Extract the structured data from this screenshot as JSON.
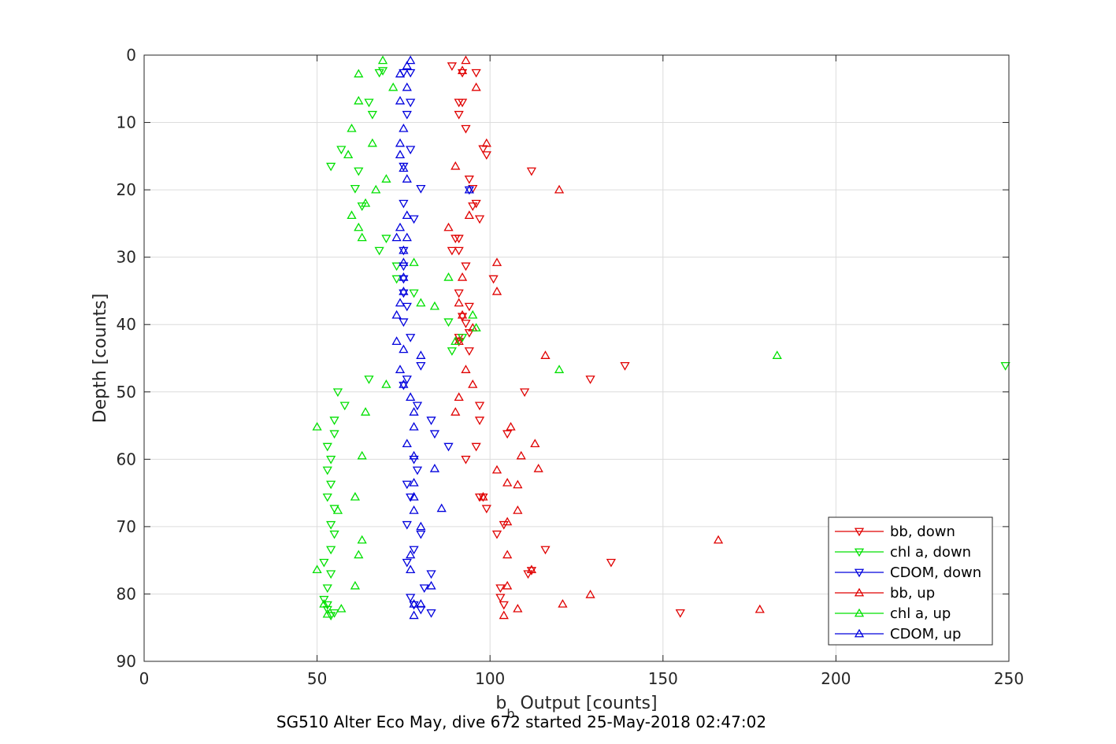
{
  "chart_data": {
    "type": "scatter",
    "title": "",
    "caption": "SG510 Alter Eco May, dive 672 started 25-May-2018 02:47:02",
    "xlabel_main": "b",
    "xlabel_sub": "b",
    "xlabel_rest": " Output [counts]",
    "ylabel": "Depth [counts]",
    "xlim": [
      0,
      250
    ],
    "ylim": [
      0,
      90
    ],
    "y_reversed": true,
    "grid": true,
    "legend_placement": "bottom-right",
    "xticks": [
      0,
      50,
      100,
      150,
      200,
      250
    ],
    "yticks": [
      0,
      10,
      20,
      30,
      40,
      50,
      60,
      70,
      80,
      90
    ],
    "colors": {
      "red": "#e00000",
      "green": "#00e000",
      "blue": "#0000dd",
      "grid": "#dcdcdc",
      "axis": "#262626"
    },
    "series": [
      {
        "name": "bb, down",
        "color": "#e00000",
        "marker": "triangle-down",
        "points": [
          [
            89,
            1.6
          ],
          [
            92,
            2.6
          ],
          [
            96,
            2.6
          ],
          [
            91,
            7.0
          ],
          [
            92,
            7.0
          ],
          [
            91,
            8.8
          ],
          [
            93,
            10.9
          ],
          [
            98,
            13.9
          ],
          [
            99,
            14.8
          ],
          [
            112,
            17.2
          ],
          [
            94,
            18.4
          ],
          [
            95,
            19.8
          ],
          [
            96,
            22.0
          ],
          [
            95,
            22.4
          ],
          [
            97,
            24.3
          ],
          [
            91,
            27.2
          ],
          [
            90,
            27.2
          ],
          [
            89,
            29.0
          ],
          [
            91,
            29.0
          ],
          [
            93,
            31.3
          ],
          [
            101,
            33.2
          ],
          [
            91,
            35.3
          ],
          [
            94,
            37.3
          ],
          [
            92,
            38.8
          ],
          [
            93,
            39.8
          ],
          [
            94,
            41.2
          ],
          [
            91,
            41.9
          ],
          [
            91,
            42.5
          ],
          [
            94,
            43.9
          ],
          [
            139,
            46.1
          ],
          [
            129,
            48.1
          ],
          [
            110,
            50.0
          ],
          [
            97,
            52.0
          ],
          [
            97,
            54.2
          ],
          [
            105,
            56.2
          ],
          [
            96,
            58.1
          ],
          [
            93,
            60.0
          ],
          [
            97,
            65.6
          ],
          [
            98,
            65.6
          ],
          [
            99,
            67.3
          ],
          [
            104,
            69.7
          ],
          [
            102,
            71.1
          ],
          [
            116,
            73.4
          ],
          [
            135,
            75.3
          ],
          [
            112,
            76.5
          ],
          [
            111,
            77.0
          ],
          [
            103,
            79.1
          ],
          [
            103,
            80.5
          ],
          [
            104,
            81.6
          ],
          [
            155,
            82.8
          ]
        ]
      },
      {
        "name": "chl a, down",
        "color": "#00e000",
        "marker": "triangle-down",
        "points": [
          [
            69,
            2.3
          ],
          [
            68,
            2.6
          ],
          [
            65,
            7.0
          ],
          [
            66,
            8.8
          ],
          [
            57,
            14.0
          ],
          [
            54,
            16.5
          ],
          [
            62,
            17.2
          ],
          [
            61,
            19.8
          ],
          [
            63,
            22.4
          ],
          [
            70,
            27.2
          ],
          [
            68,
            29.0
          ],
          [
            73,
            31.3
          ],
          [
            73,
            33.2
          ],
          [
            78,
            35.3
          ],
          [
            88,
            39.6
          ],
          [
            92,
            41.9
          ],
          [
            89,
            43.9
          ],
          [
            65,
            48.1
          ],
          [
            56,
            50.0
          ],
          [
            58,
            52.0
          ],
          [
            55,
            54.2
          ],
          [
            55,
            56.2
          ],
          [
            53,
            58.1
          ],
          [
            54,
            60.0
          ],
          [
            53,
            61.6
          ],
          [
            54,
            63.7
          ],
          [
            53,
            65.6
          ],
          [
            55,
            67.3
          ],
          [
            54,
            69.7
          ],
          [
            55,
            71.1
          ],
          [
            54,
            73.4
          ],
          [
            52,
            75.3
          ],
          [
            54,
            77.0
          ],
          [
            53,
            79.1
          ],
          [
            52,
            80.8
          ],
          [
            53,
            81.6
          ],
          [
            53,
            82.3
          ],
          [
            55,
            82.8
          ],
          [
            54,
            83.2
          ],
          [
            249,
            46.1
          ]
        ]
      },
      {
        "name": "CDOM, down",
        "color": "#0000dd",
        "marker": "triangle-down",
        "points": [
          [
            77,
            2.6
          ],
          [
            75,
            2.6
          ],
          [
            77,
            7.0
          ],
          [
            76,
            8.8
          ],
          [
            77,
            14.0
          ],
          [
            75,
            16.5
          ],
          [
            80,
            19.8
          ],
          [
            94,
            20.0
          ],
          [
            75,
            22.0
          ],
          [
            78,
            24.3
          ],
          [
            75,
            29.0
          ],
          [
            75,
            31.3
          ],
          [
            75,
            33.2
          ],
          [
            75,
            35.3
          ],
          [
            76,
            37.3
          ],
          [
            75,
            39.6
          ],
          [
            77,
            41.9
          ],
          [
            80,
            46.1
          ],
          [
            76,
            48.1
          ],
          [
            75,
            49.0
          ],
          [
            79,
            52.0
          ],
          [
            83,
            54.2
          ],
          [
            84,
            56.2
          ],
          [
            88,
            58.1
          ],
          [
            78,
            60.0
          ],
          [
            79,
            61.6
          ],
          [
            76,
            63.7
          ],
          [
            77,
            65.6
          ],
          [
            76,
            69.7
          ],
          [
            80,
            71.1
          ],
          [
            78,
            73.4
          ],
          [
            76,
            75.3
          ],
          [
            83,
            77.0
          ],
          [
            81,
            79.1
          ],
          [
            77,
            80.5
          ],
          [
            78,
            81.6
          ],
          [
            80,
            82.3
          ],
          [
            83,
            82.8
          ]
        ]
      },
      {
        "name": "bb, up",
        "color": "#e00000",
        "marker": "triangle-up",
        "points": [
          [
            93,
            0.8
          ],
          [
            92,
            2.3
          ],
          [
            96,
            4.8
          ],
          [
            99,
            13.1
          ],
          [
            90,
            16.5
          ],
          [
            120,
            20.0
          ],
          [
            94,
            23.8
          ],
          [
            88,
            25.6
          ],
          [
            102,
            30.8
          ],
          [
            92,
            33.0
          ],
          [
            102,
            35.1
          ],
          [
            91,
            36.8
          ],
          [
            92,
            38.6
          ],
          [
            95,
            40.5
          ],
          [
            91,
            42.5
          ],
          [
            116,
            44.6
          ],
          [
            93,
            46.7
          ],
          [
            95,
            48.9
          ],
          [
            91,
            50.8
          ],
          [
            90,
            53.0
          ],
          [
            106,
            55.2
          ],
          [
            113,
            57.7
          ],
          [
            109,
            59.5
          ],
          [
            114,
            61.4
          ],
          [
            102,
            61.6
          ],
          [
            105,
            63.5
          ],
          [
            108,
            63.8
          ],
          [
            98,
            65.6
          ],
          [
            108,
            67.6
          ],
          [
            105,
            69.3
          ],
          [
            166,
            72.0
          ],
          [
            105,
            74.2
          ],
          [
            112,
            76.4
          ],
          [
            105,
            78.8
          ],
          [
            129,
            80.1
          ],
          [
            121,
            81.5
          ],
          [
            108,
            82.2
          ],
          [
            178,
            82.3
          ],
          [
            104,
            83.2
          ]
        ]
      },
      {
        "name": "chl a, up",
        "color": "#00e000",
        "marker": "triangle-up",
        "points": [
          [
            69,
            0.8
          ],
          [
            62,
            2.8
          ],
          [
            72,
            4.8
          ],
          [
            62,
            6.8
          ],
          [
            60,
            10.9
          ],
          [
            66,
            13.1
          ],
          [
            59,
            14.8
          ],
          [
            70,
            18.4
          ],
          [
            67,
            20.0
          ],
          [
            64,
            22.0
          ],
          [
            60,
            23.8
          ],
          [
            62,
            25.6
          ],
          [
            63,
            27.1
          ],
          [
            78,
            30.8
          ],
          [
            88,
            33.0
          ],
          [
            80,
            36.8
          ],
          [
            84,
            37.3
          ],
          [
            95,
            38.6
          ],
          [
            96,
            40.5
          ],
          [
            90,
            42.5
          ],
          [
            183,
            44.6
          ],
          [
            120,
            46.7
          ],
          [
            70,
            48.9
          ],
          [
            64,
            53.0
          ],
          [
            50,
            55.2
          ],
          [
            63,
            59.5
          ],
          [
            61,
            65.6
          ],
          [
            56,
            67.6
          ],
          [
            63,
            72.0
          ],
          [
            62,
            74.2
          ],
          [
            50,
            76.4
          ],
          [
            61,
            78.8
          ],
          [
            52,
            81.5
          ],
          [
            57,
            82.2
          ],
          [
            53,
            83.0
          ]
        ]
      },
      {
        "name": "CDOM, up",
        "color": "#0000dd",
        "marker": "triangle-up",
        "points": [
          [
            77,
            0.8
          ],
          [
            76,
            1.6
          ],
          [
            74,
            2.8
          ],
          [
            76,
            4.8
          ],
          [
            74,
            6.8
          ],
          [
            75,
            10.9
          ],
          [
            74,
            13.1
          ],
          [
            74,
            14.8
          ],
          [
            75,
            16.8
          ],
          [
            76,
            18.4
          ],
          [
            94,
            20.0
          ],
          [
            76,
            23.8
          ],
          [
            74,
            25.6
          ],
          [
            73,
            27.1
          ],
          [
            76,
            27.1
          ],
          [
            75,
            29.0
          ],
          [
            75,
            30.8
          ],
          [
            75,
            33.0
          ],
          [
            75,
            35.1
          ],
          [
            74,
            36.8
          ],
          [
            73,
            38.6
          ],
          [
            73,
            42.5
          ],
          [
            75,
            43.7
          ],
          [
            80,
            44.6
          ],
          [
            74,
            46.7
          ],
          [
            75,
            48.9
          ],
          [
            77,
            50.8
          ],
          [
            78,
            53.0
          ],
          [
            78,
            55.2
          ],
          [
            76,
            57.7
          ],
          [
            78,
            59.5
          ],
          [
            84,
            61.4
          ],
          [
            78,
            63.5
          ],
          [
            78,
            65.6
          ],
          [
            86,
            67.3
          ],
          [
            78,
            67.6
          ],
          [
            80,
            70.0
          ],
          [
            77,
            74.2
          ],
          [
            77,
            76.4
          ],
          [
            83,
            78.8
          ],
          [
            78,
            81.5
          ],
          [
            80,
            81.5
          ],
          [
            78,
            83.2
          ]
        ]
      }
    ]
  }
}
